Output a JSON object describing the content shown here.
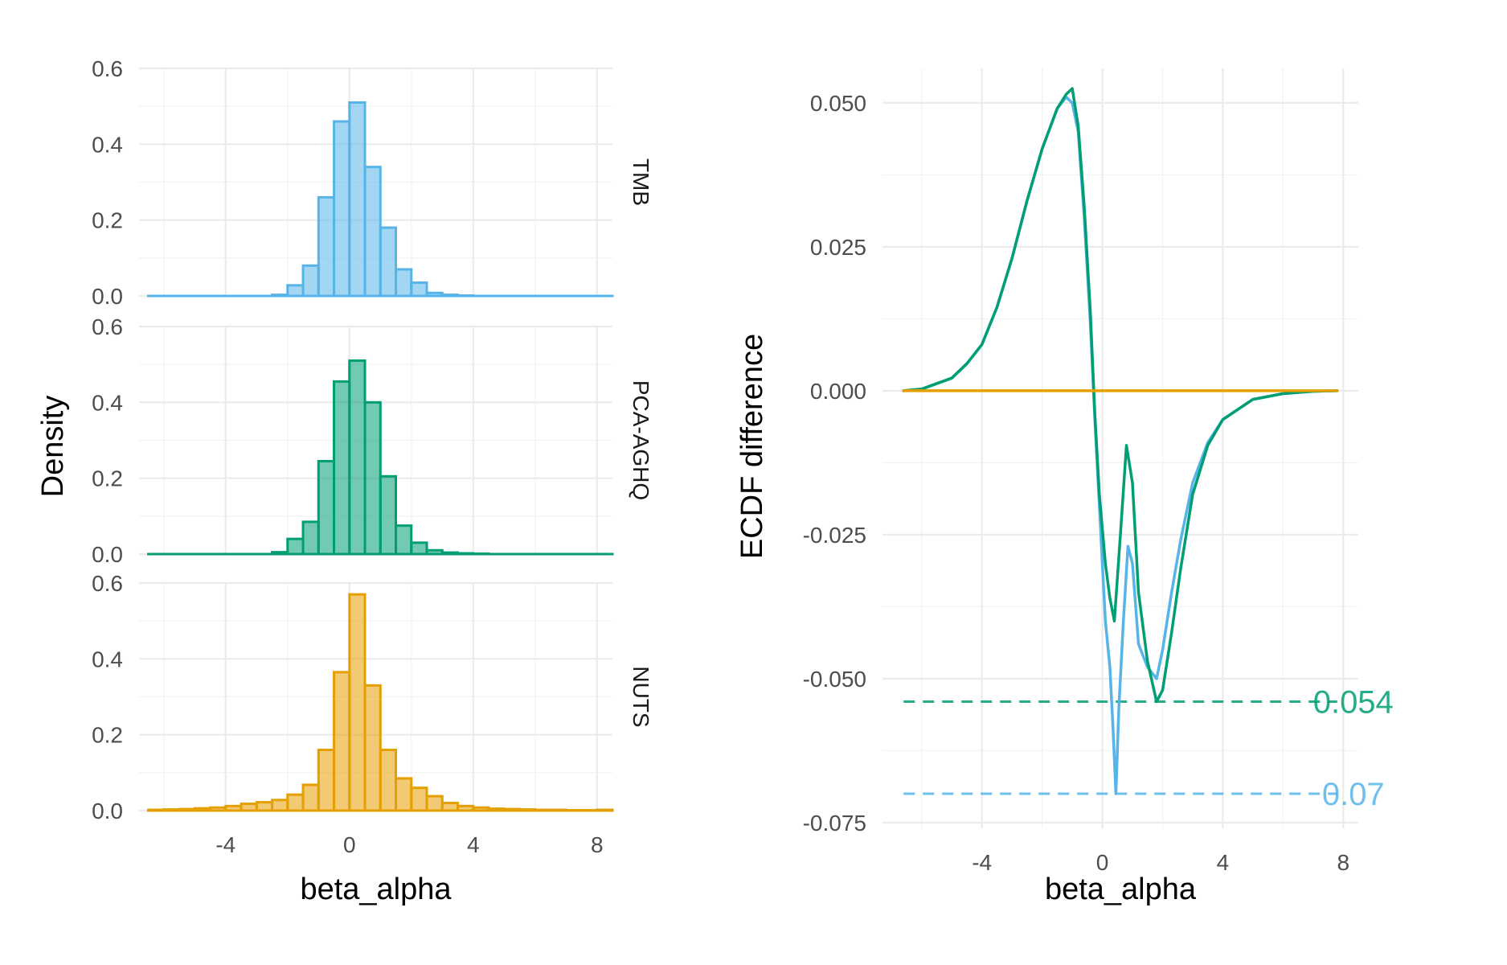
{
  "colors": {
    "TMB": "#56B4E9",
    "PCA-AGHQ": "#009E73",
    "NUTS": "#E69F00"
  },
  "chart_data": [
    {
      "type": "bar",
      "subtype": "histogram",
      "facets": [
        "TMB",
        "PCA-AGHQ",
        "NUTS"
      ],
      "xlabel": "beta_alpha",
      "ylabel": "Density",
      "xlim": [
        -6.8,
        8.5
      ],
      "ylim": [
        0,
        0.6
      ],
      "x_ticks": [
        -4,
        0,
        4,
        8
      ],
      "x_tick_labels": [
        "-4",
        "0",
        "4",
        "8"
      ],
      "y_ticks": [
        0,
        0.2,
        0.4,
        0.6
      ],
      "y_tick_labels": [
        "0.0",
        "0.2",
        "0.4",
        "0.6"
      ],
      "grid": true,
      "bin_width": 0.5,
      "bin_start": -6.5,
      "series": [
        {
          "name": "TMB",
          "values": [
            0,
            0,
            0,
            0,
            0,
            0,
            0,
            0,
            0.003,
            0.028,
            0.08,
            0.26,
            0.46,
            0.51,
            0.34,
            0.18,
            0.07,
            0.035,
            0.008,
            0.003,
            0.001,
            0,
            0,
            0,
            0,
            0,
            0,
            0,
            0,
            0
          ]
        },
        {
          "name": "PCA-AGHQ",
          "values": [
            0,
            0,
            0,
            0,
            0,
            0,
            0,
            0,
            0.005,
            0.04,
            0.085,
            0.245,
            0.455,
            0.51,
            0.4,
            0.205,
            0.075,
            0.03,
            0.01,
            0.004,
            0.002,
            0.001,
            0,
            0,
            0,
            0,
            0,
            0,
            0,
            0
          ]
        },
        {
          "name": "NUTS",
          "values": [
            0.002,
            0.003,
            0.004,
            0.006,
            0.008,
            0.012,
            0.018,
            0.022,
            0.028,
            0.042,
            0.068,
            0.16,
            0.365,
            0.57,
            0.33,
            0.16,
            0.085,
            0.06,
            0.038,
            0.02,
            0.012,
            0.008,
            0.005,
            0.004,
            0.003,
            0.002,
            0.002,
            0.001,
            0.001,
            0.002
          ]
        }
      ]
    },
    {
      "type": "line",
      "xlabel": "beta_alpha",
      "ylabel": "ECDF difference",
      "xlim": [
        -7.3,
        8.5
      ],
      "ylim": [
        -0.076,
        0.056
      ],
      "x_ticks": [
        -4,
        0,
        4,
        8
      ],
      "x_tick_labels": [
        "-4",
        "0",
        "4",
        "8"
      ],
      "y_ticks": [
        0.05,
        0.025,
        0,
        -0.025,
        -0.05,
        -0.075
      ],
      "y_tick_labels": [
        "0.050",
        "0.025",
        "0.000",
        "-0.025",
        "-0.050",
        "-0.075"
      ],
      "grid": true,
      "series": [
        {
          "name": "TMB",
          "x": [
            -6.6,
            -6,
            -5,
            -4.5,
            -4,
            -3.5,
            -3,
            -2.5,
            -2,
            -1.5,
            -1.2,
            -1,
            -0.8,
            -0.6,
            -0.4,
            -0.25,
            -0.1,
            0.1,
            0.25,
            0.35,
            0.45,
            0.55,
            0.7,
            0.85,
            1,
            1.2,
            1.5,
            1.8,
            2,
            2.3,
            2.6,
            3,
            3.5,
            4,
            5,
            6,
            7,
            7.8
          ],
          "y": [
            0,
            0.0003,
            0.0022,
            0.0047,
            0.008,
            0.0145,
            0.023,
            0.033,
            0.042,
            0.049,
            0.051,
            0.05,
            0.045,
            0.03,
            0.012,
            -0.005,
            -0.02,
            -0.04,
            -0.048,
            -0.058,
            -0.07,
            -0.055,
            -0.04,
            -0.027,
            -0.03,
            -0.044,
            -0.048,
            -0.05,
            -0.045,
            -0.035,
            -0.026,
            -0.016,
            -0.009,
            -0.005,
            -0.0015,
            -0.0005,
            -0.0001,
            0
          ]
        },
        {
          "name": "PCA-AGHQ",
          "x": [
            -6.6,
            -6,
            -5,
            -4.5,
            -4,
            -3.5,
            -3,
            -2.5,
            -2,
            -1.5,
            -1.2,
            -1,
            -0.8,
            -0.6,
            -0.4,
            -0.25,
            -0.1,
            0.1,
            0.25,
            0.4,
            0.6,
            0.8,
            1,
            1.2,
            1.5,
            1.8,
            2,
            2.3,
            2.6,
            3,
            3.5,
            4,
            5,
            6,
            7,
            7.8
          ],
          "y": [
            0,
            0.0003,
            0.0022,
            0.0047,
            0.008,
            0.0145,
            0.023,
            0.033,
            0.042,
            0.049,
            0.0515,
            0.0525,
            0.046,
            0.032,
            0.014,
            -0.004,
            -0.018,
            -0.03,
            -0.036,
            -0.04,
            -0.025,
            -0.0095,
            -0.016,
            -0.035,
            -0.047,
            -0.054,
            -0.052,
            -0.042,
            -0.031,
            -0.018,
            -0.0095,
            -0.005,
            -0.0015,
            -0.0005,
            -0.0001,
            0
          ]
        },
        {
          "name": "NUTS",
          "x": [
            -6.6,
            7.8
          ],
          "y": [
            0,
            0
          ]
        }
      ],
      "reference_lines": [
        {
          "name": "PCA-AGHQ",
          "y": -0.054,
          "label": "0.054"
        },
        {
          "name": "TMB",
          "y": -0.07,
          "label": "0.07"
        }
      ]
    }
  ]
}
